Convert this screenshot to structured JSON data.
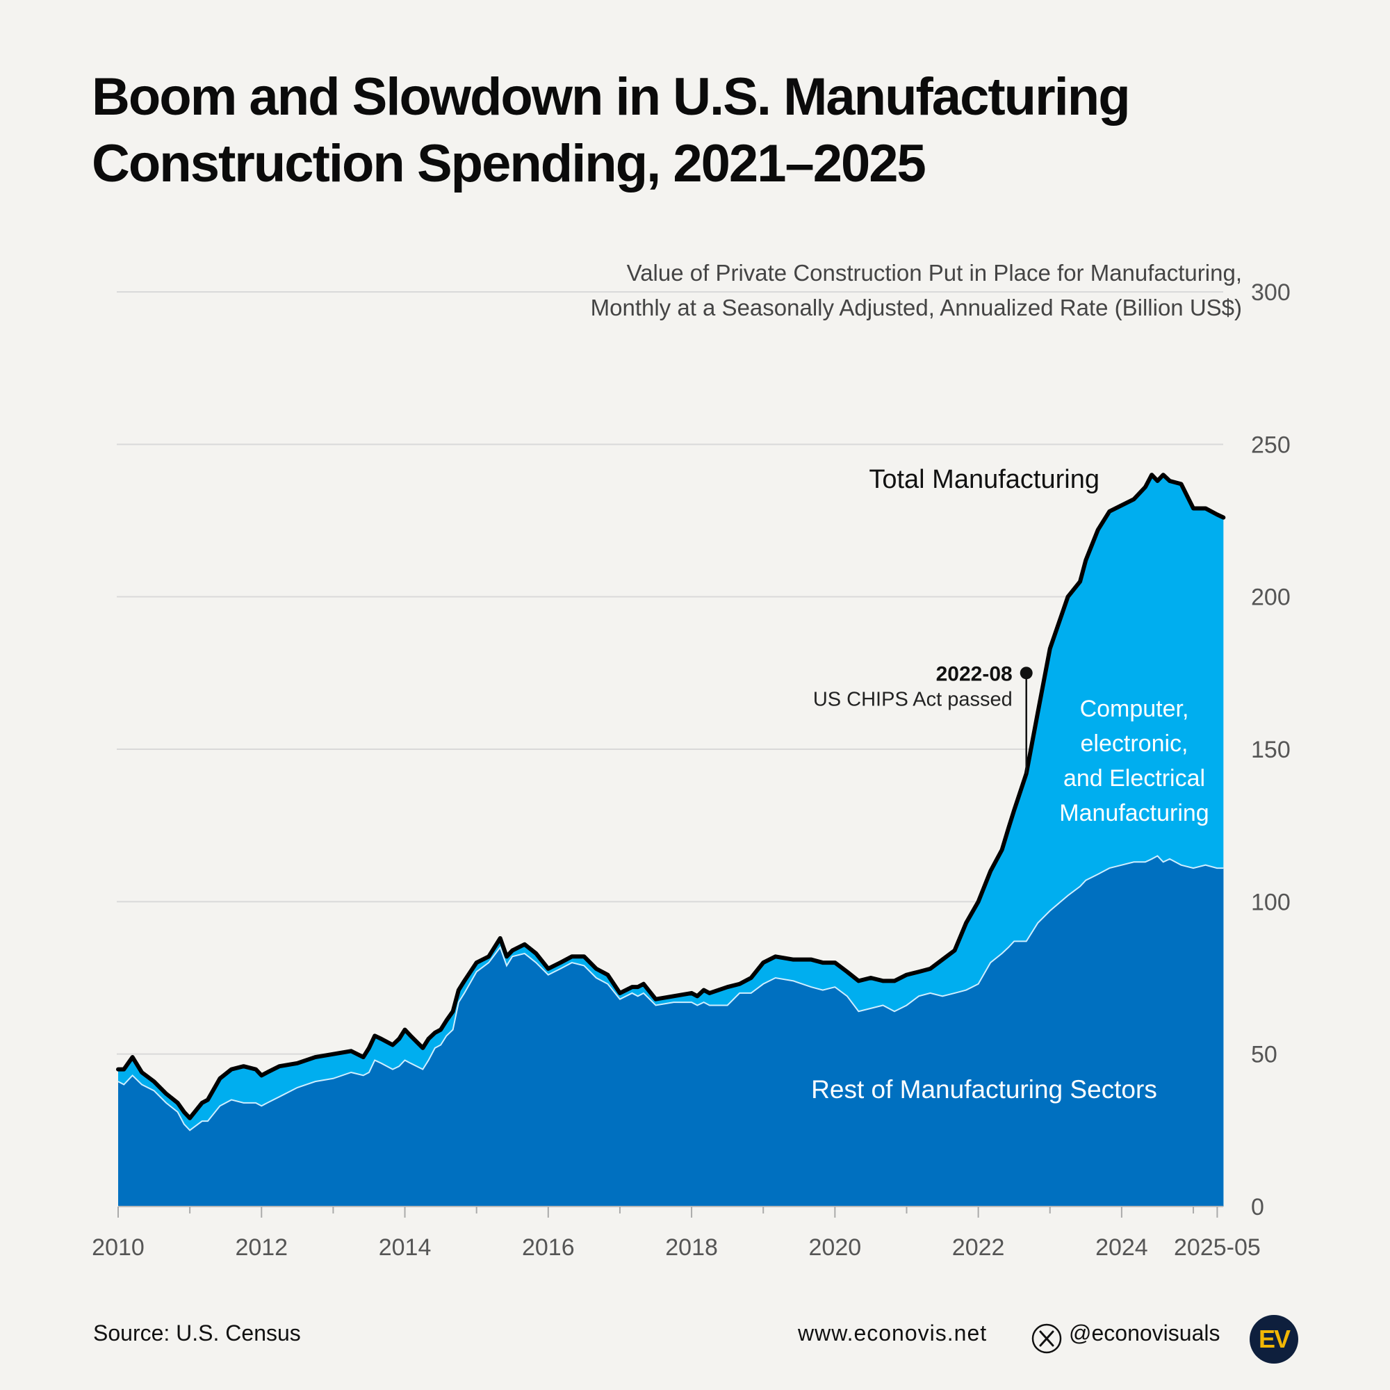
{
  "title_line1": "Boom and Slowdown in U.S. Manufacturing",
  "title_line2": "Construction Spending, 2021–2025",
  "chart_data": {
    "type": "area",
    "subtitle_line1": "Value of Private Construction Put in Place for Manufacturing,",
    "subtitle_line2": "Monthly at a Seasonally Adjusted, Annualized Rate (Billion US$)",
    "ylim": [
      0,
      300
    ],
    "xlim": [
      2010.0,
      2025.4167
    ],
    "y_ticks": [
      "0",
      "50",
      "100",
      "150",
      "200",
      "250",
      "300"
    ],
    "y_tick_values": [
      0,
      50,
      100,
      150,
      200,
      250,
      300
    ],
    "x_ticks": [
      "2010",
      "2012",
      "2014",
      "2016",
      "2018",
      "2020",
      "2022",
      "2024",
      "2025-05"
    ],
    "x_tick_values": [
      2010,
      2012,
      2014,
      2016,
      2018,
      2020,
      2022,
      2024,
      2025.3333
    ],
    "x_minor_ticks": [
      2011,
      2013,
      2015,
      2017,
      2019,
      2021,
      2023,
      2025
    ],
    "series": [
      {
        "name": "Total Manufacturing",
        "color": "#000000",
        "x": [
          2010.0,
          2010.08,
          2010.2,
          2010.33,
          2010.5,
          2010.67,
          2010.83,
          2010.92,
          2011.0,
          2011.17,
          2011.25,
          2011.42,
          2011.58,
          2011.75,
          2011.92,
          2012.0,
          2012.08,
          2012.25,
          2012.5,
          2012.75,
          2013.0,
          2013.25,
          2013.42,
          2013.5,
          2013.58,
          2013.67,
          2013.83,
          2013.92,
          2014.0,
          2014.08,
          2014.25,
          2014.33,
          2014.42,
          2014.5,
          2014.58,
          2014.67,
          2014.75,
          2014.83,
          2015.0,
          2015.17,
          2015.33,
          2015.42,
          2015.5,
          2015.67,
          2015.83,
          2016.0,
          2016.17,
          2016.33,
          2016.5,
          2016.67,
          2016.83,
          2017.0,
          2017.17,
          2017.25,
          2017.33,
          2017.5,
          2017.75,
          2018.0,
          2018.08,
          2018.17,
          2018.25,
          2018.5,
          2018.67,
          2018.83,
          2019.0,
          2019.17,
          2019.42,
          2019.67,
          2019.83,
          2020.0,
          2020.17,
          2020.33,
          2020.5,
          2020.67,
          2020.83,
          2021.0,
          2021.17,
          2021.33,
          2021.5,
          2021.67,
          2021.83,
          2022.0,
          2022.17,
          2022.33,
          2022.42,
          2022.5,
          2022.67,
          2022.83,
          2023.0,
          2023.25,
          2023.42,
          2023.5,
          2023.67,
          2023.83,
          2024.0,
          2024.17,
          2024.33,
          2024.42,
          2024.5,
          2024.58,
          2024.67,
          2024.83,
          2025.0,
          2025.17,
          2025.33,
          2025.42
        ],
        "values": [
          45,
          45,
          49,
          44,
          41,
          37,
          34,
          31,
          29,
          34,
          35,
          42,
          45,
          46,
          45,
          43,
          44,
          46,
          47,
          49,
          50,
          51,
          49,
          52,
          56,
          55,
          53,
          55,
          58,
          56,
          52,
          55,
          57,
          58,
          61,
          64,
          71,
          74,
          80,
          82,
          88,
          82,
          84,
          86,
          83,
          78,
          80,
          82,
          82,
          78,
          76,
          70,
          72,
          72,
          73,
          68,
          69,
          70,
          69,
          71,
          70,
          72,
          73,
          75,
          80,
          82,
          81,
          81,
          80,
          80,
          77,
          74,
          75,
          74,
          74,
          76,
          77,
          78,
          81,
          84,
          93,
          100,
          110,
          117,
          124,
          130,
          142,
          162,
          183,
          200,
          205,
          212,
          222,
          228,
          230,
          232,
          236,
          240,
          238,
          240,
          238,
          237,
          229,
          229,
          227,
          226
        ]
      },
      {
        "name": "Rest of Manufacturing Sectors",
        "color": "#0070c0",
        "x": [
          2010.0,
          2010.08,
          2010.2,
          2010.33,
          2010.5,
          2010.67,
          2010.83,
          2010.92,
          2011.0,
          2011.17,
          2011.25,
          2011.42,
          2011.58,
          2011.75,
          2011.92,
          2012.0,
          2012.08,
          2012.25,
          2012.5,
          2012.75,
          2013.0,
          2013.25,
          2013.42,
          2013.5,
          2013.58,
          2013.67,
          2013.83,
          2013.92,
          2014.0,
          2014.08,
          2014.25,
          2014.33,
          2014.42,
          2014.5,
          2014.58,
          2014.67,
          2014.75,
          2014.83,
          2015.0,
          2015.17,
          2015.33,
          2015.42,
          2015.5,
          2015.67,
          2015.83,
          2016.0,
          2016.17,
          2016.33,
          2016.5,
          2016.67,
          2016.83,
          2017.0,
          2017.17,
          2017.25,
          2017.33,
          2017.5,
          2017.75,
          2018.0,
          2018.08,
          2018.17,
          2018.25,
          2018.5,
          2018.67,
          2018.83,
          2019.0,
          2019.17,
          2019.42,
          2019.67,
          2019.83,
          2020.0,
          2020.17,
          2020.33,
          2020.5,
          2020.67,
          2020.83,
          2021.0,
          2021.17,
          2021.33,
          2021.5,
          2021.67,
          2021.83,
          2022.0,
          2022.17,
          2022.33,
          2022.42,
          2022.5,
          2022.67,
          2022.83,
          2023.0,
          2023.25,
          2023.42,
          2023.5,
          2023.67,
          2023.83,
          2024.0,
          2024.17,
          2024.33,
          2024.42,
          2024.5,
          2024.58,
          2024.67,
          2024.83,
          2025.0,
          2025.17,
          2025.33,
          2025.42
        ],
        "values": [
          41,
          40,
          43,
          40,
          38,
          34,
          31,
          27,
          25,
          28,
          28,
          33,
          35,
          34,
          34,
          33,
          34,
          36,
          39,
          41,
          42,
          44,
          43,
          44,
          48,
          47,
          45,
          46,
          48,
          47,
          45,
          48,
          52,
          53,
          56,
          58,
          67,
          70,
          77,
          80,
          85,
          79,
          82,
          83,
          80,
          76,
          78,
          80,
          79,
          75,
          73,
          68,
          70,
          69,
          70,
          66,
          67,
          67,
          66,
          67,
          66,
          66,
          70,
          70,
          73,
          75,
          74,
          72,
          71,
          72,
          69,
          64,
          65,
          66,
          64,
          66,
          69,
          70,
          69,
          70,
          71,
          73,
          80,
          83,
          85,
          87,
          87,
          93,
          97,
          102,
          105,
          107,
          109,
          111,
          112,
          113,
          113,
          114,
          115,
          113,
          114,
          112,
          111,
          112,
          111,
          111
        ]
      },
      {
        "name": "Computer, electronic, and Electrical Manufacturing",
        "color": "#00aeef",
        "note": "difference between Total Manufacturing and Rest of Manufacturing Sectors"
      }
    ],
    "labels": {
      "total": "Total Manufacturing",
      "computer": [
        "Computer,",
        "electronic,",
        "and Electrical",
        "Manufacturing"
      ],
      "rest": "Rest of Manufacturing Sectors"
    },
    "annotation": {
      "x": 2022.67,
      "y": 175,
      "date": "2022-08",
      "text": "US CHIPS Act passed"
    },
    "colors": {
      "rest": "#0070c0",
      "computer": "#00aeef",
      "total_line": "#000000",
      "separator": "#cfeeff",
      "grid": "#d9d9d9",
      "tick_text": "#555555"
    }
  },
  "footer": {
    "source": "Source: U.S. Census",
    "website": "www.econovis.net",
    "handle": "@econovisuals",
    "logo_text": "EV"
  }
}
